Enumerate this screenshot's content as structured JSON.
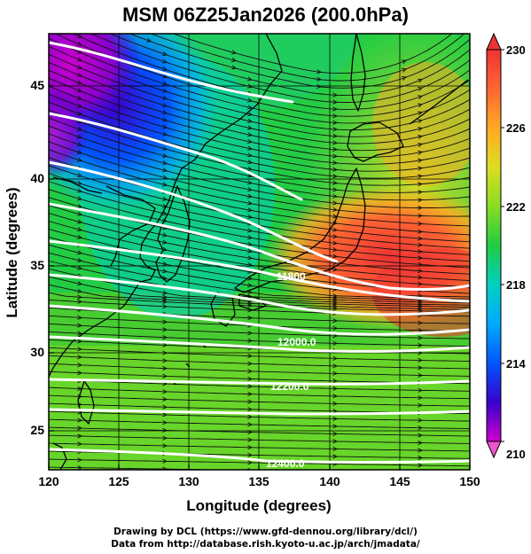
{
  "title": "MSM 06Z25Jan2026 (200.0hPa)",
  "x_axis": {
    "label": "Longitude (degrees)",
    "ticks": [
      120,
      125,
      130,
      135,
      140,
      145,
      150
    ],
    "range": [
      120,
      150
    ]
  },
  "y_axis": {
    "label": "Latitude  (degrees)",
    "ticks": [
      25,
      30,
      35,
      40,
      45
    ],
    "range": [
      22.4,
      47.6
    ]
  },
  "colorbar": {
    "ticks": [
      210,
      214,
      218,
      222,
      226,
      230
    ],
    "range": [
      210,
      230
    ],
    "colors": [
      "#cc00cc",
      "#3a00cc",
      "#0055ff",
      "#00aaff",
      "#00d0c0",
      "#22cc44",
      "#88dd22",
      "#dddd22",
      "#ffaa22",
      "#ff6633",
      "#ee3333"
    ]
  },
  "contour_labels": [
    "11800",
    "12000.0",
    "12200.0",
    "12400.0"
  ],
  "footer": {
    "line1": "Drawing by DCL (https://www.gfd-dennou.org/library/dcl/)",
    "line2": "Data from http://database.rish.kyoto-u.ac.jp/arch/jmadata/"
  }
}
